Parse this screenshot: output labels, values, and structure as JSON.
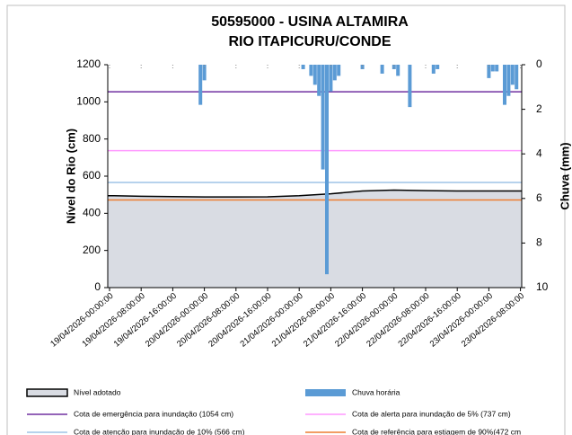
{
  "chart_data": {
    "type": "area",
    "title": "50595000 - USINA ALTAMIRA",
    "subtitle": "RIO ITAPICURU/CONDE",
    "y_label": "Nível do Rio (cm)",
    "y2_label": "Chuva (mm)",
    "categories": [
      "19/04/2026-00:00:00",
      "19/04/2026-08:00:00",
      "19/04/2026-16:00:00",
      "20/04/2026-00:00:00",
      "20/04/2026-08:00:00",
      "20/04/2026-16:00:00",
      "21/04/2026-00:00:00",
      "21/04/2026-08:00:00",
      "21/04/2026-16:00:00",
      "22/04/2026-00:00:00",
      "22/04/2026-08:00:00",
      "22/04/2026-16:00:00",
      "23/04/2026-00:00:00",
      "23/04/2026-08:00:00"
    ],
    "series": [
      {
        "name": "Nível adotado",
        "color": "#d9dce3",
        "line_color": "#000000",
        "values": [
          495,
          492,
          490,
          488,
          488,
          489,
          495,
          505,
          520,
          525,
          522,
          520,
          520,
          520
        ]
      },
      {
        "name": "Chuva horária",
        "color": "#5b9bd5",
        "axis": "y2",
        "x": [
          "19/04/2026-23:00:00",
          "20/04/2026-00:00:00",
          "21/04/2026-01:00:00",
          "21/04/2026-03:00:00",
          "21/04/2026-04:00:00",
          "21/04/2026-05:00:00",
          "21/04/2026-06:00:00",
          "21/04/2026-07:00:00",
          "21/04/2026-08:00:00",
          "21/04/2026-09:00:00",
          "21/04/2026-10:00:00",
          "21/04/2026-16:00:00",
          "21/04/2026-21:00:00",
          "22/04/2026-00:00:00",
          "22/04/2026-01:00:00",
          "22/04/2026-04:00:00",
          "22/04/2026-10:00:00",
          "22/04/2026-11:00:00",
          "23/04/2026-00:00:00",
          "23/04/2026-01:00:00",
          "23/04/2026-02:00:00",
          "23/04/2026-04:00:00",
          "23/04/2026-05:00:00",
          "23/04/2026-06:00:00",
          "23/04/2026-07:00:00"
        ],
        "values": [
          1.8,
          0.7,
          0.2,
          0.5,
          0.9,
          1.4,
          4.7,
          9.4,
          1.2,
          0.7,
          0.5,
          0.2,
          0.4,
          0.2,
          0.5,
          1.9,
          0.4,
          0.2,
          0.6,
          0.3,
          0.3,
          1.8,
          1.4,
          0.9,
          1.1
        ]
      }
    ],
    "reference_lines": [
      {
        "name": "Cota de emergência para inundação (1054 cm)",
        "value": 1054,
        "color": "#7030a0"
      },
      {
        "name": "Cota de alerta para inundação de 5%  (737 cm)",
        "value": 737,
        "color": "#ff99ff"
      },
      {
        "name": "Cota de atenção para inundação de 10% (566 cm)",
        "value": 566,
        "color": "#9dc3e6"
      },
      {
        "name": "Cota de referência para estiagem de 90%(472 cm",
        "value": 472,
        "color": "#ed7d31"
      }
    ],
    "ylim": [
      0,
      1200
    ],
    "yticks": [
      0,
      200,
      400,
      600,
      800,
      1000,
      1200
    ],
    "y2lim": [
      0,
      10
    ],
    "y2ticks": [
      0,
      2,
      4,
      6,
      8,
      10
    ],
    "y2_inverted": true,
    "grid": false
  }
}
